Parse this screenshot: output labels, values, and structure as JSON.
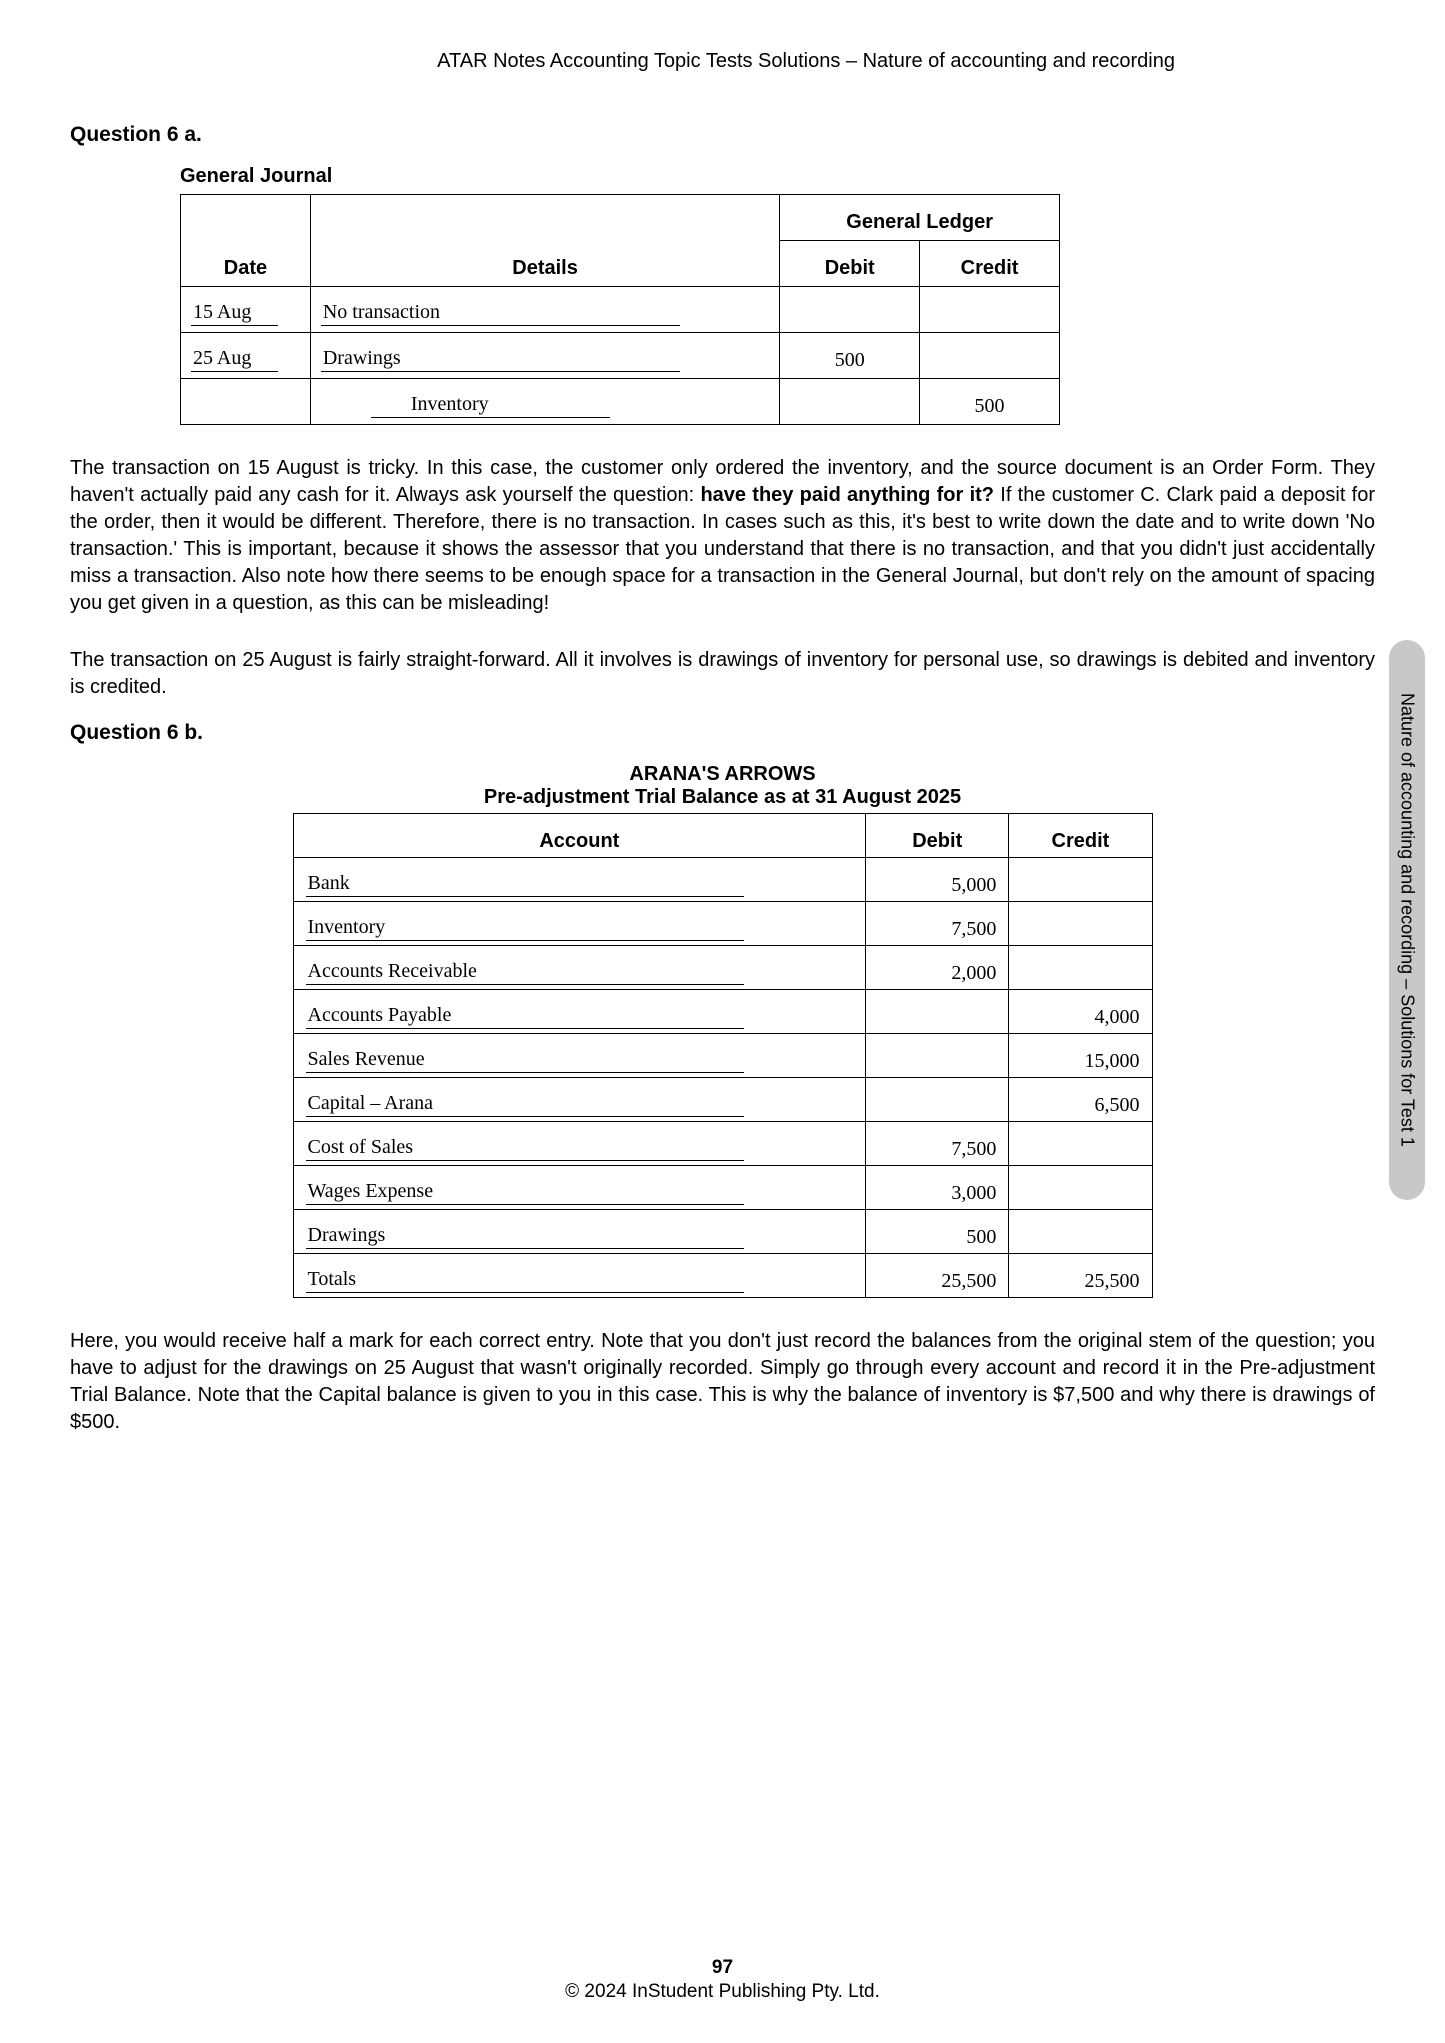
{
  "header": "ATAR Notes Accounting Topic Tests Solutions – Nature of accounting and recording",
  "q6a_title": "Question 6 a.",
  "gj_title": "General Journal",
  "gj_headers": {
    "gl": "General Ledger",
    "date": "Date",
    "details": "Details",
    "debit": "Debit",
    "credit": "Credit"
  },
  "gj_rows": [
    {
      "date": "15 Aug",
      "details": "No transaction",
      "debit": "",
      "credit": ""
    },
    {
      "date": "25 Aug",
      "details": "Drawings",
      "debit": "500",
      "credit": ""
    },
    {
      "date": "",
      "details": "Inventory",
      "debit": "",
      "credit": "500",
      "indent": true
    }
  ],
  "para1_a": "The transaction on 15 August is tricky. In this case, the customer only ordered the inventory, and the source document is an Order Form. They haven't actually paid any cash for it. Always ask yourself the question: ",
  "para1_bold": "have they paid anything for it?",
  "para1_b": " If the customer C. Clark paid a deposit for the order, then it would be different. Therefore, there is no transaction. In cases such as this, it's best to write down the date and to write down 'No transaction.' This is important, because it shows the assessor that you understand that there is no transaction, and that you didn't just accidentally miss a transaction. Also note how there seems to be enough space for a transaction in the General Journal, but don't rely on the amount of spacing you get given in a question, as this can be misleading!",
  "para2": "The transaction on 25 August is fairly straight-forward. All it involves is drawings of inventory for personal use, so drawings is debited and inventory is credited.",
  "q6b_title": "Question 6 b.",
  "tb_company": "ARANA'S ARROWS",
  "tb_subtitle": "Pre-adjustment Trial Balance as at 31 August 2025",
  "tb_headers": {
    "account": "Account",
    "debit": "Debit",
    "credit": "Credit"
  },
  "tb_rows": [
    {
      "account": "Bank",
      "debit": "5,000",
      "credit": ""
    },
    {
      "account": "Inventory",
      "debit": "7,500",
      "credit": ""
    },
    {
      "account": "Accounts Receivable",
      "debit": "2,000",
      "credit": ""
    },
    {
      "account": "Accounts Payable",
      "debit": "",
      "credit": "4,000"
    },
    {
      "account": "Sales Revenue",
      "debit": "",
      "credit": "15,000"
    },
    {
      "account": "Capital – Arana",
      "debit": "",
      "credit": "6,500"
    },
    {
      "account": "Cost of Sales",
      "debit": "7,500",
      "credit": ""
    },
    {
      "account": "Wages Expense",
      "debit": "3,000",
      "credit": ""
    },
    {
      "account": "Drawings",
      "debit": "500",
      "credit": ""
    },
    {
      "account": "Totals",
      "debit": "25,500",
      "credit": "25,500"
    }
  ],
  "para3": "Here, you would receive half a mark for each correct entry. Note that you don't just record the balances from the original stem of the question; you have to adjust for the drawings on 25 August that wasn't originally recorded. Simply go through every account and record it in the Pre-adjustment Trial Balance. Note that the Capital balance is given to you in this case. This is why the balance of inventory is $7,500 and why there is drawings of $500.",
  "side_tab": "Nature of accounting and recording – Solutions for Test 1",
  "page_number": "97",
  "copyright": "© 2024 InStudent Publishing Pty. Ltd."
}
